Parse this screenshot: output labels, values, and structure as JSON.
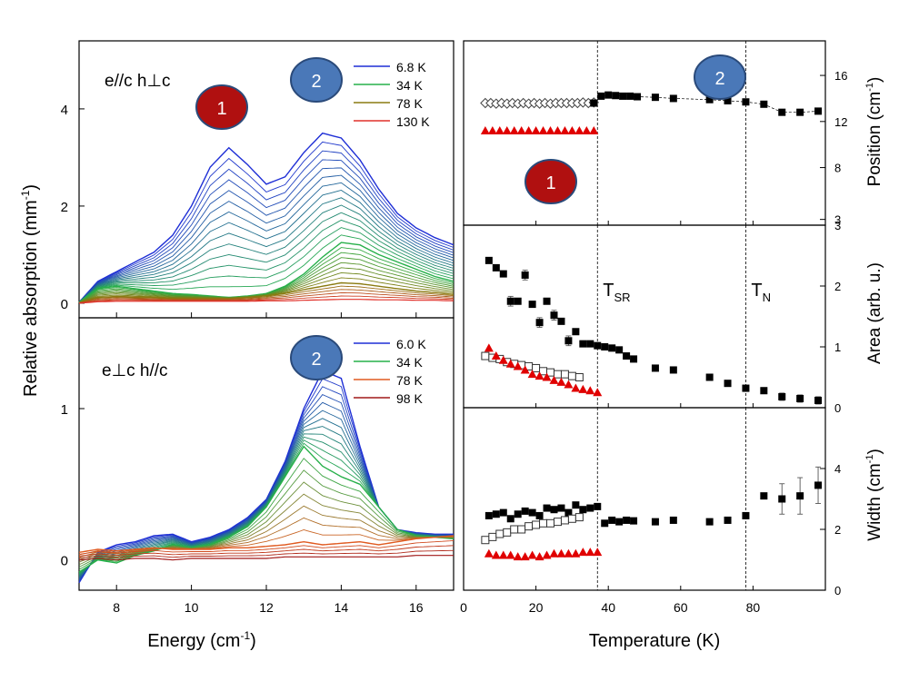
{
  "chart_data": [
    {
      "type": "line",
      "panel": "left-top",
      "title": "",
      "annotation": "e//c  h⊥c",
      "xlabel": "Energy (cm-1)",
      "ylabel": "Relative absorption (mm-1)",
      "xlim": [
        7,
        17
      ],
      "ylim": [
        -0.3,
        5.4
      ],
      "xticks": [
        "8",
        "10",
        "12",
        "14",
        "16"
      ],
      "yticks": [
        "0",
        "2",
        "4"
      ],
      "yticks_values": [
        0,
        2,
        4
      ],
      "legend": {
        "position": "top-right",
        "entries": [
          {
            "label": "6.8 K",
            "color": "#1f2fd6"
          },
          {
            "label": "34 K",
            "color": "#27b04a"
          },
          {
            "label": "78 K",
            "color": "#8a7a10"
          },
          {
            "label": "130 K",
            "color": "#e0302a"
          }
        ]
      },
      "badges": [
        {
          "label": "1",
          "color": "#b01010"
        },
        {
          "label": "2",
          "color": "#4a78b8"
        }
      ],
      "x": [
        7,
        7.5,
        8,
        8.5,
        9,
        9.5,
        10,
        10.5,
        11,
        11.5,
        12,
        12.5,
        13,
        13.5,
        14,
        14.5,
        15,
        15.5,
        16,
        16.5,
        17
      ],
      "series": [
        {
          "name": "6.8 K",
          "color": "#1f2fd6",
          "values": [
            0.02,
            0.45,
            0.65,
            0.85,
            1.05,
            1.4,
            2.0,
            2.8,
            3.2,
            2.85,
            2.45,
            2.6,
            3.1,
            3.5,
            3.4,
            2.95,
            2.35,
            1.85,
            1.55,
            1.35,
            1.2
          ]
        },
        {
          "name": "34 K",
          "color": "#27b04a",
          "values": [
            0.02,
            0.3,
            0.35,
            0.3,
            0.25,
            0.2,
            0.18,
            0.15,
            0.12,
            0.15,
            0.2,
            0.35,
            0.6,
            0.95,
            1.25,
            1.2,
            1.0,
            0.85,
            0.7,
            0.55,
            0.45
          ]
        },
        {
          "name": "78 K",
          "color": "#8a7a10",
          "values": [
            0.01,
            0.12,
            0.14,
            0.13,
            0.12,
            0.1,
            0.1,
            0.1,
            0.1,
            0.12,
            0.15,
            0.2,
            0.28,
            0.35,
            0.42,
            0.4,
            0.35,
            0.3,
            0.25,
            0.22,
            0.18
          ]
        },
        {
          "name": "130 K",
          "color": "#e0302a",
          "values": [
            0.0,
            0.03,
            0.04,
            0.04,
            0.04,
            0.04,
            0.04,
            0.04,
            0.04,
            0.04,
            0.05,
            0.05,
            0.06,
            0.07,
            0.08,
            0.08,
            0.07,
            0.07,
            0.06,
            0.06,
            0.05
          ]
        }
      ]
    },
    {
      "type": "line",
      "panel": "left-bottom",
      "title": "",
      "annotation": "e⊥c  h//c",
      "xlabel": "Energy (cm-1)",
      "ylabel": "Relative absorption (mm-1)",
      "xlim": [
        7,
        17
      ],
      "ylim": [
        -0.2,
        1.6
      ],
      "xticks": [
        "8",
        "10",
        "12",
        "14",
        "16"
      ],
      "yticks": [
        "0",
        "1"
      ],
      "yticks_values": [
        0,
        1
      ],
      "legend": {
        "position": "top-right",
        "entries": [
          {
            "label": "6.0 K",
            "color": "#1f2fd6"
          },
          {
            "label": "34 K",
            "color": "#27b04a"
          },
          {
            "label": "78 K",
            "color": "#e05a20"
          },
          {
            "label": "98 K",
            "color": "#a01818"
          }
        ]
      },
      "badges": [
        {
          "label": "2",
          "color": "#4a78b8"
        }
      ],
      "x": [
        7,
        7.5,
        8,
        8.5,
        9,
        9.5,
        10,
        10.5,
        11,
        11.5,
        12,
        12.5,
        13,
        13.5,
        14,
        14.5,
        15,
        15.5,
        16,
        16.5,
        17
      ],
      "series": [
        {
          "name": "6.0 K",
          "color": "#1f2fd6",
          "values": [
            -0.15,
            0.05,
            0.1,
            0.12,
            0.16,
            0.17,
            0.12,
            0.15,
            0.2,
            0.28,
            0.4,
            0.65,
            1.0,
            1.25,
            1.2,
            0.75,
            0.35,
            0.2,
            0.18,
            0.17,
            0.17
          ]
        },
        {
          "name": "34 K",
          "color": "#27b04a",
          "values": [
            -0.08,
            0.0,
            -0.02,
            0.03,
            0.06,
            0.1,
            0.08,
            0.1,
            0.15,
            0.22,
            0.35,
            0.55,
            0.75,
            0.62,
            0.55,
            0.5,
            0.35,
            0.2,
            0.16,
            0.15,
            0.14
          ]
        },
        {
          "name": "78 K",
          "color": "#e05a20",
          "values": [
            0.05,
            0.07,
            0.06,
            0.07,
            0.08,
            0.07,
            0.07,
            0.07,
            0.08,
            0.08,
            0.09,
            0.1,
            0.12,
            0.1,
            0.11,
            0.12,
            0.1,
            0.12,
            0.14,
            0.15,
            0.16
          ]
        },
        {
          "name": "98 K",
          "color": "#a01818",
          "values": [
            0.0,
            0.01,
            0.0,
            0.01,
            0.01,
            0.0,
            0.01,
            0.01,
            0.01,
            0.01,
            0.01,
            0.02,
            0.02,
            0.02,
            0.02,
            0.02,
            0.02,
            0.02,
            0.03,
            0.03,
            0.03
          ]
        }
      ]
    },
    {
      "type": "scatter",
      "panel": "right-top",
      "title": "",
      "xlabel": "Temperature (K)",
      "ylabel": "Position (cm-1)",
      "xlim": [
        0,
        100
      ],
      "ylim": [
        3,
        19
      ],
      "yticks": [
        "3",
        "8",
        "12",
        "16"
      ],
      "yticks_values": [
        3.5,
        8,
        12,
        16
      ],
      "badges": [
        {
          "label": "2",
          "color": "#4a78b8"
        },
        {
          "label": "1",
          "color": "#b01010"
        }
      ],
      "vlines": [
        {
          "x": 37,
          "label": "TSR"
        },
        {
          "x": 78,
          "label": "TN"
        }
      ],
      "series": [
        {
          "name": "open diamonds",
          "marker": "diamond-open",
          "color": "#333333",
          "x": [
            6,
            7.5,
            9,
            10.5,
            12,
            13.5,
            15,
            16.5,
            18,
            19.5,
            21,
            22.5,
            24,
            25.5,
            27,
            28.5,
            30,
            31.5,
            33,
            34.5,
            36
          ],
          "y": [
            13.6,
            13.6,
            13.55,
            13.6,
            13.55,
            13.6,
            13.55,
            13.6,
            13.55,
            13.6,
            13.55,
            13.6,
            13.55,
            13.6,
            13.6,
            13.6,
            13.6,
            13.6,
            13.65,
            13.6,
            13.65
          ]
        },
        {
          "name": "filled squares",
          "marker": "square-filled",
          "color": "#000000",
          "connected": true,
          "x": [
            36,
            38,
            40,
            42,
            44,
            46,
            48,
            53,
            58,
            68,
            73,
            78,
            83,
            88,
            93,
            98
          ],
          "y": [
            13.6,
            14.2,
            14.3,
            14.25,
            14.2,
            14.2,
            14.15,
            14.1,
            14.0,
            13.9,
            13.8,
            13.7,
            13.5,
            12.8,
            12.8,
            12.9
          ]
        },
        {
          "name": "red triangles",
          "marker": "triangle-filled",
          "color": "#e00000",
          "x": [
            6,
            8,
            10,
            12,
            14,
            16,
            18,
            20,
            22,
            24,
            26,
            28,
            30,
            32,
            34,
            36
          ],
          "y": [
            11.2,
            11.2,
            11.2,
            11.2,
            11.2,
            11.2,
            11.2,
            11.2,
            11.2,
            11.2,
            11.2,
            11.2,
            11.2,
            11.2,
            11.2,
            11.2
          ]
        }
      ]
    },
    {
      "type": "scatter",
      "panel": "right-middle",
      "title": "",
      "xlabel": "Temperature (K)",
      "ylabel": "Area (arb. u.)",
      "xlim": [
        0,
        100
      ],
      "ylim": [
        0,
        3
      ],
      "yticks": [
        "0",
        "1",
        "2",
        "3"
      ],
      "yticks_values": [
        0,
        1,
        2,
        3
      ],
      "annotations": [
        {
          "text": "T",
          "sub": "SR"
        },
        {
          "text": "T",
          "sub": "N"
        }
      ],
      "vlines": [
        {
          "x": 37,
          "label": "TSR"
        },
        {
          "x": 78,
          "label": "TN"
        }
      ],
      "series": [
        {
          "name": "filled squares",
          "marker": "square-filled",
          "color": "#000000",
          "x": [
            7,
            9,
            11,
            13,
            15,
            17,
            19,
            21,
            23,
            25,
            27,
            29,
            31,
            33,
            35,
            37,
            39,
            41,
            43,
            45,
            47,
            53,
            58,
            68,
            73,
            78,
            83,
            88,
            93,
            98
          ],
          "y": [
            2.42,
            2.3,
            2.2,
            1.75,
            1.75,
            2.18,
            1.7,
            1.4,
            1.75,
            1.52,
            1.42,
            1.1,
            1.25,
            1.05,
            1.05,
            1.02,
            1.0,
            0.98,
            0.95,
            0.85,
            0.8,
            0.65,
            0.62,
            0.5,
            0.4,
            0.32,
            0.28,
            0.18,
            0.15,
            0.12
          ],
          "err": [
            0,
            0,
            0,
            0.08,
            0,
            0.08,
            0,
            0.08,
            0,
            0.08,
            0,
            0.08,
            0,
            0.04,
            0,
            0,
            0,
            0,
            0,
            0,
            0,
            0,
            0,
            0,
            0,
            0,
            0,
            0.06,
            0.06,
            0.06
          ]
        },
        {
          "name": "open squares",
          "marker": "square-open",
          "color": "#333333",
          "x": [
            6,
            8,
            10,
            12,
            14,
            16,
            18,
            20,
            22,
            24,
            26,
            28,
            30,
            32
          ],
          "y": [
            0.85,
            0.82,
            0.8,
            0.75,
            0.72,
            0.7,
            0.68,
            0.65,
            0.6,
            0.58,
            0.55,
            0.55,
            0.52,
            0.5
          ]
        },
        {
          "name": "red triangles",
          "marker": "triangle-filled",
          "color": "#e00000",
          "x": [
            7,
            9,
            11,
            13,
            15,
            17,
            19,
            21,
            23,
            25,
            27,
            29,
            31,
            33,
            35,
            37
          ],
          "y": [
            0.98,
            0.85,
            0.78,
            0.72,
            0.68,
            0.62,
            0.55,
            0.52,
            0.5,
            0.45,
            0.42,
            0.38,
            0.32,
            0.3,
            0.28,
            0.25
          ]
        }
      ]
    },
    {
      "type": "scatter",
      "panel": "right-bottom",
      "title": "",
      "xlabel": "Temperature (K)",
      "ylabel": "Width (cm-1)",
      "xlim": [
        0,
        100
      ],
      "ylim": [
        0,
        6
      ],
      "xticks": [
        "0",
        "20",
        "40",
        "60",
        "80"
      ],
      "xticks_values": [
        0,
        20,
        40,
        60,
        80
      ],
      "yticks": [
        "0",
        "2",
        "4"
      ],
      "yticks_values": [
        0,
        2,
        4
      ],
      "vlines": [
        {
          "x": 37,
          "label": "TSR"
        },
        {
          "x": 78,
          "label": "TN"
        }
      ],
      "series": [
        {
          "name": "filled squares",
          "marker": "square-filled",
          "color": "#000000",
          "x": [
            7,
            9,
            11,
            13,
            15,
            17,
            19,
            21,
            23,
            25,
            27,
            29,
            31,
            33,
            35,
            37,
            39,
            41,
            43,
            45,
            47,
            53,
            58,
            68,
            73,
            78,
            83,
            88,
            93,
            98
          ],
          "y": [
            2.45,
            2.5,
            2.55,
            2.35,
            2.5,
            2.6,
            2.55,
            2.45,
            2.7,
            2.65,
            2.7,
            2.55,
            2.8,
            2.65,
            2.7,
            2.75,
            2.2,
            2.3,
            2.25,
            2.3,
            2.28,
            2.25,
            2.3,
            2.25,
            2.3,
            2.45,
            3.1,
            3.0,
            3.1,
            3.45
          ],
          "err": [
            0,
            0,
            0,
            0,
            0,
            0,
            0,
            0,
            0,
            0,
            0,
            0,
            0,
            0,
            0,
            0,
            0,
            0,
            0,
            0,
            0,
            0,
            0,
            0,
            0,
            0,
            0,
            0.5,
            0.6,
            0.6
          ]
        },
        {
          "name": "open squares",
          "marker": "square-open",
          "color": "#333333",
          "x": [
            6,
            8,
            10,
            12,
            14,
            16,
            18,
            20,
            22,
            24,
            26,
            28,
            30,
            32
          ],
          "y": [
            1.65,
            1.75,
            1.85,
            1.9,
            2.0,
            2.0,
            2.1,
            2.15,
            2.2,
            2.2,
            2.25,
            2.3,
            2.35,
            2.4
          ]
        },
        {
          "name": "red triangles",
          "marker": "triangle-filled",
          "color": "#e00000",
          "x": [
            7,
            9,
            11,
            13,
            15,
            17,
            19,
            21,
            23,
            25,
            27,
            29,
            31,
            33,
            35,
            37
          ],
          "y": [
            1.2,
            1.15,
            1.15,
            1.15,
            1.1,
            1.1,
            1.15,
            1.1,
            1.15,
            1.2,
            1.2,
            1.2,
            1.2,
            1.25,
            1.25,
            1.25
          ]
        }
      ]
    }
  ],
  "labels": {
    "left_xlabel": "Energy (cm",
    "left_xlabel_sup": "-1",
    "left_xlabel_end": ")",
    "left_ylabel": "Relative absorption (mm",
    "left_ylabel_sup": "-1",
    "left_ylabel_end": ")",
    "right_xlabel": "Temperature (K)",
    "pos_ylabel": "Position (cm",
    "pos_ylabel_sup": "-1",
    "pos_ylabel_end": ")",
    "area_ylabel": "Area (arb. u.)",
    "width_ylabel": "Width (cm",
    "width_ylabel_sup": "-1",
    "width_ylabel_end": ")"
  }
}
